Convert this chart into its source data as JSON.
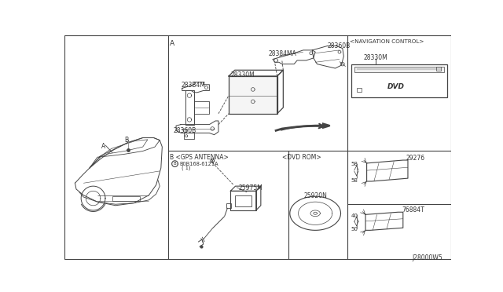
{
  "bg_color": "#ffffff",
  "line_color": "#444444",
  "light_line_color": "#888888",
  "text_color": "#333333",
  "fig_width": 6.4,
  "fig_height": 3.72,
  "labels": {
    "section_A": "A",
    "nav_control": "<NAVIGATION CONTROL>",
    "gps_antenna": "B <GPS ANTENNA>",
    "dvd_rom": "<DVD ROM>",
    "part_28384MA": "28384MA",
    "part_28360B_top": "28360B",
    "part_283B4M": "283B4M",
    "part_28330M_main": "28330M",
    "part_28360B_bot": "28360B",
    "part_28330M_nav": "28330M",
    "part_0B168_line1": "B0B168-6121A",
    "part_0B168_line2": "( 1)",
    "part_25975M": "25975M",
    "part_25920N": "25920N",
    "part_29276": "29276",
    "part_76884T": "76884T",
    "dim_58_top1": "58",
    "dim_58_top2": "58",
    "dim_40": "40",
    "dim_50": "50",
    "diagram_code": "J28000W5",
    "label_A_car": "A",
    "label_B_car": "B"
  }
}
